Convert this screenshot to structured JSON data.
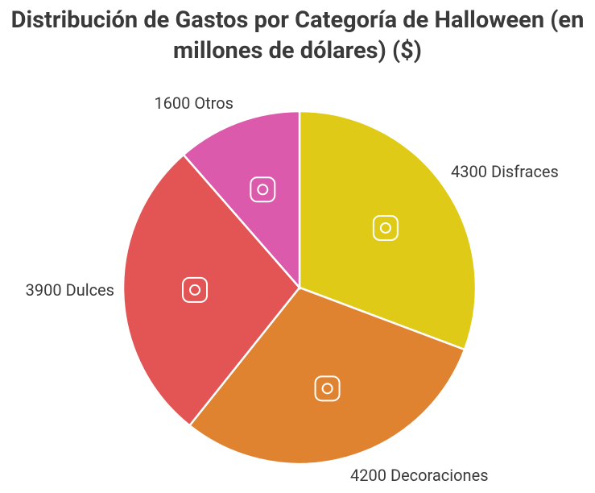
{
  "chart_data": {
    "type": "pie",
    "title": "Distribución de Gastos por Categoría de Halloween (en millones de dólares) ($)",
    "categories": [
      "Disfraces",
      "Decoraciones",
      "Dulces",
      "Otros"
    ],
    "values": [
      4300,
      4200,
      3900,
      1600
    ],
    "colors": [
      "#dfcb17",
      "#e08330",
      "#e35554",
      "#dc5aab"
    ]
  }
}
